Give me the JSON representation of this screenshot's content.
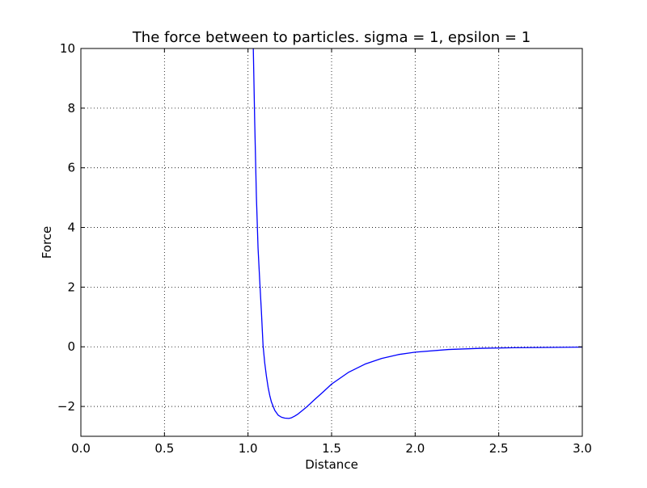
{
  "chart_data": {
    "type": "line",
    "title": "The force between to particles. sigma = 1, epsilon = 1",
    "xlabel": "Distance",
    "ylabel": "Force",
    "xlim": [
      0,
      3
    ],
    "ylim": [
      -3,
      10
    ],
    "grid": true,
    "xticks": [
      0,
      0.5,
      1,
      1.5,
      2,
      2.5,
      3
    ],
    "xtick_labels": [
      "0.0",
      "0.5",
      "1.0",
      "1.5",
      "2.0",
      "2.5",
      "3.0"
    ],
    "yticks": [
      -2,
      0,
      2,
      4,
      6,
      8,
      10
    ],
    "ytick_labels": [
      "−2",
      "0",
      "2",
      "4",
      "6",
      "8",
      "10"
    ],
    "series": [
      {
        "color": "#0000ff",
        "x": [
          1.03,
          1.04,
          1.05,
          1.06,
          1.07,
          1.08,
          1.09,
          1.1,
          1.11,
          1.12,
          1.13,
          1.14,
          1.16,
          1.18,
          1.2,
          1.22,
          1.244,
          1.26,
          1.28,
          1.3,
          1.35,
          1.4,
          1.45,
          1.5,
          1.6,
          1.7,
          1.8,
          1.9,
          2.0,
          2.2,
          2.4,
          2.6,
          2.8,
          3.0
        ],
        "y": [
          10.47,
          7.55,
          5.06,
          3.31,
          2.22,
          1.19,
          0.04,
          -0.54,
          -0.98,
          -1.35,
          -1.63,
          -1.85,
          -2.13,
          -2.29,
          -2.36,
          -2.39,
          -2.4,
          -2.38,
          -2.32,
          -2.25,
          -2.02,
          -1.76,
          -1.51,
          -1.25,
          -0.86,
          -0.58,
          -0.39,
          -0.26,
          -0.18,
          -0.09,
          -0.05,
          -0.03,
          -0.02,
          -0.01
        ]
      }
    ]
  }
}
